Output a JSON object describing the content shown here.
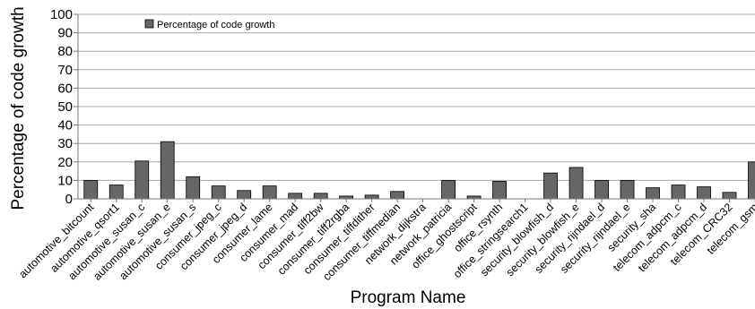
{
  "chart_data": {
    "type": "bar",
    "xlabel": "Program Name",
    "ylabel": "Percentage of code growth",
    "ylim": [
      0,
      100
    ],
    "yticks": [
      0,
      10,
      20,
      30,
      40,
      50,
      60,
      70,
      80,
      90,
      100
    ],
    "grid": true,
    "legend": {
      "placement": "top-left"
    },
    "series": [
      {
        "name": "Percentage of code growth",
        "color": "#666666",
        "values": [
          10,
          7.5,
          20.5,
          31,
          12,
          7,
          4.5,
          7,
          3,
          3,
          1.5,
          2,
          4,
          0,
          10,
          1.5,
          9.5,
          0,
          14,
          17,
          10,
          10,
          6,
          7.5,
          6.5,
          3.5,
          20
        ]
      }
    ],
    "categories": [
      "automotive_bitcount",
      "automotive_qsort1",
      "automotive_susan_c",
      "automotive_susan_e",
      "automotive_susan_s",
      "consumer_jpeg_c",
      "consumer_jpeg_d",
      "consumer_lame",
      "consumer_mad",
      "consumer_tiff2bw",
      "consumer_tiff2rgba",
      "consumer_tiffdither",
      "consumer_tiffmedian",
      "network_dijkstra",
      "network_patricia",
      "office_ghostscript",
      "office_rsynth",
      "office_stringsearch1",
      "security_blowfish_d",
      "security_blowfish_e",
      "security_rijndael_d",
      "security_rijndael_e",
      "security_sha",
      "telecom_adpcm_c",
      "telecom_adpcm_d",
      "telecom_CRC32",
      "telecom_gsm"
    ]
  }
}
